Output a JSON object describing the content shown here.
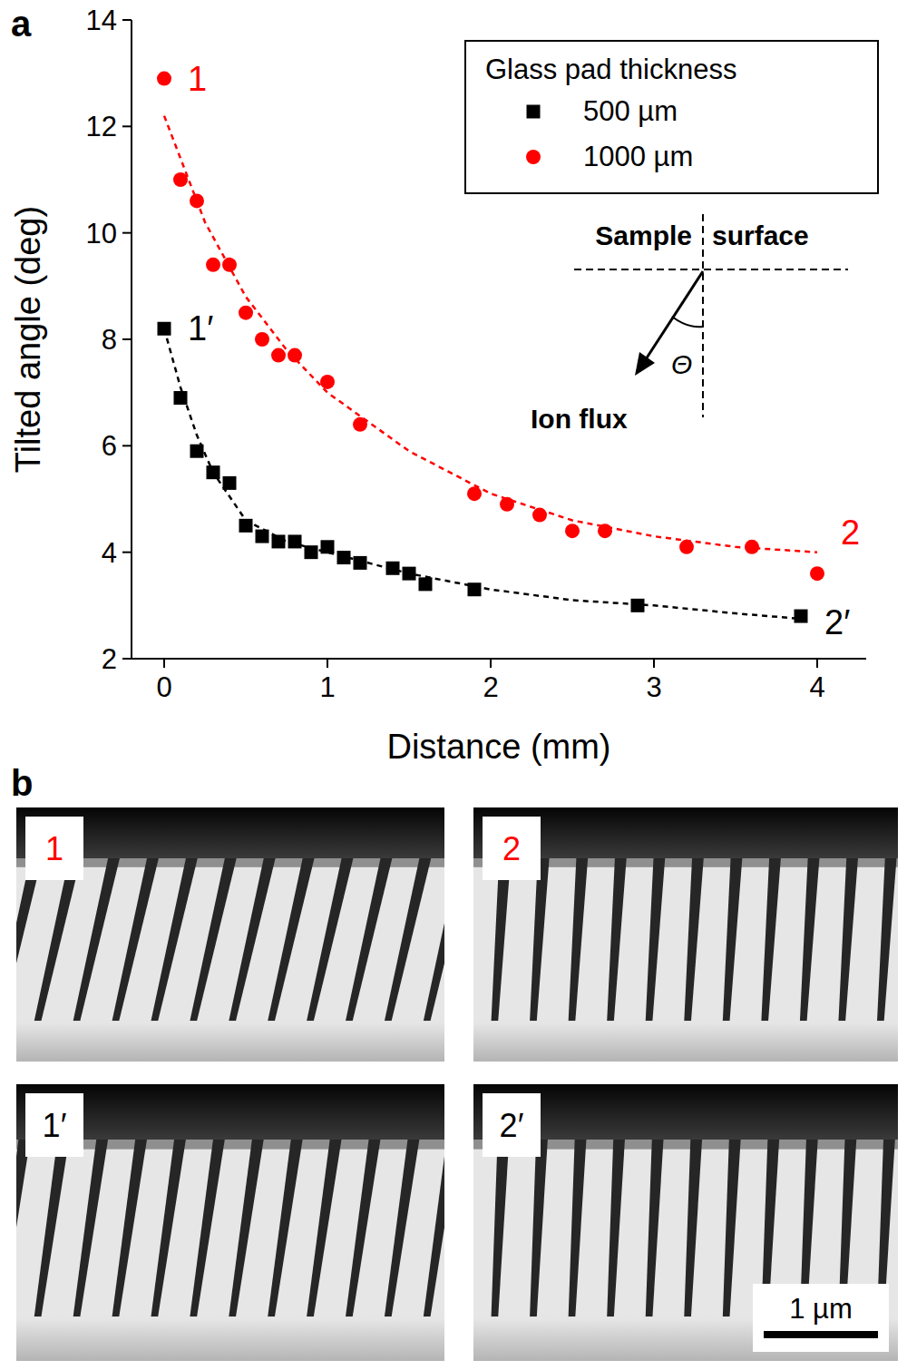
{
  "panels": [
    "a",
    "b"
  ],
  "chart_data": {
    "type": "scatter",
    "x_label": "Distance (mm)",
    "y_label": "Tilted angle (deg)",
    "xlim": [
      -0.2,
      4.3
    ],
    "xticks": [
      0,
      1,
      2,
      3,
      4
    ],
    "ylim": [
      2,
      14
    ],
    "yticks": [
      2,
      4,
      6,
      8,
      10,
      12,
      14
    ],
    "grid": false,
    "legend": "upper right",
    "legend_title": "Glass pad thickness",
    "series": [
      {
        "name": "500 µm",
        "color": "#000000",
        "marker": "square",
        "x": [
          0,
          0.1,
          0.2,
          0.3,
          0.4,
          0.5,
          0.6,
          0.7,
          0.8,
          0.9,
          1.0,
          1.1,
          1.2,
          1.4,
          1.5,
          1.6,
          1.9,
          2.9,
          3.9
        ],
        "values": [
          8.2,
          6.9,
          5.9,
          5.5,
          5.3,
          4.5,
          4.3,
          4.2,
          4.2,
          4.0,
          4.1,
          3.9,
          3.8,
          3.7,
          3.6,
          3.4,
          3.3,
          3.0,
          2.8
        ]
      },
      {
        "name": "1000 µm",
        "color": "#ff0000",
        "marker": "circle",
        "x": [
          0,
          0.1,
          0.2,
          0.3,
          0.4,
          0.5,
          0.6,
          0.7,
          0.8,
          1.0,
          1.2,
          1.9,
          2.1,
          2.3,
          2.5,
          2.7,
          3.2,
          3.6,
          4.0
        ],
        "values": [
          12.9,
          11.0,
          10.6,
          9.4,
          9.4,
          8.5,
          8.0,
          7.7,
          7.7,
          7.2,
          6.4,
          5.1,
          4.9,
          4.7,
          4.4,
          4.4,
          4.1,
          4.1,
          3.6
        ]
      },
      {
        "type": "line",
        "line_style": "dashed",
        "color": "#000000",
        "x": [
          0,
          0.1,
          0.2,
          0.3,
          0.5,
          0.75,
          1.0,
          1.5,
          2.0,
          2.5,
          3.0,
          3.5,
          3.9
        ],
        "values": [
          8.2,
          7.1,
          6.2,
          5.5,
          4.6,
          4.2,
          4.0,
          3.6,
          3.3,
          3.1,
          3.0,
          2.85,
          2.75
        ]
      },
      {
        "type": "line",
        "line_style": "dashed",
        "color": "#ff0000",
        "x": [
          0,
          0.25,
          0.5,
          0.75,
          1.0,
          1.5,
          2.0,
          2.5,
          3.0,
          3.5,
          4.0
        ],
        "values": [
          12.2,
          10.2,
          8.8,
          7.8,
          7.0,
          5.9,
          5.1,
          4.6,
          4.3,
          4.1,
          4.0
        ]
      }
    ],
    "annotations": [
      {
        "text": "1",
        "color": "#ff0000",
        "x": 0,
        "y": 12.9
      },
      {
        "text": "1′",
        "color": "#000000",
        "x": 0,
        "y": 8.2
      },
      {
        "text": "2",
        "color": "#ff0000",
        "x": 4.0,
        "y": 3.6
      },
      {
        "text": "2′",
        "color": "#000000",
        "x": 3.9,
        "y": 2.8
      }
    ],
    "inset": {
      "left_label": "Sample",
      "right_label": "surface",
      "arrow_label": "Ion flux",
      "angle_label": "Θ"
    }
  },
  "images": {
    "items": [
      {
        "label": "1",
        "color": "#ff0000"
      },
      {
        "label": "2",
        "color": "#ff0000"
      },
      {
        "label": "1′",
        "color": "#000000"
      },
      {
        "label": "2′",
        "color": "#000000"
      }
    ],
    "scale_bar": "1 µm"
  }
}
